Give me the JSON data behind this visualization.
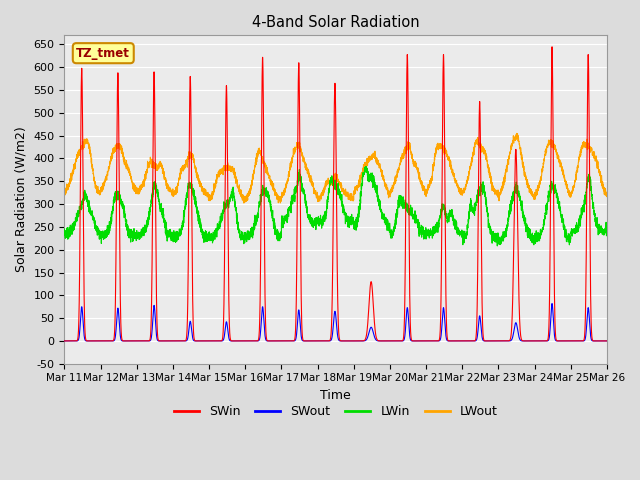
{
  "title": "4-Band Solar Radiation",
  "xlabel": "Time",
  "ylabel": "Solar Radiation (W/m2)",
  "ylim": [
    -50,
    670
  ],
  "xlim": [
    0,
    15
  ],
  "xtick_labels": [
    "Mar 11",
    "Mar 12",
    "Mar 13",
    "Mar 14",
    "Mar 15",
    "Mar 16",
    "Mar 17",
    "Mar 18",
    "Mar 19",
    "Mar 20",
    "Mar 21",
    "Mar 22",
    "Mar 23",
    "Mar 24",
    "Mar 25",
    "Mar 26"
  ],
  "ytick_values": [
    -50,
    0,
    50,
    100,
    150,
    200,
    250,
    300,
    350,
    400,
    450,
    500,
    550,
    600,
    650
  ],
  "legend_entries": [
    "SWin",
    "SWout",
    "LWin",
    "LWout"
  ],
  "annotation_text": "TZ_tmet",
  "annotation_bg": "#FFFF99",
  "annotation_border": "#CC8800",
  "fig_bg": "#DCDCDC",
  "plot_bg": "#EBEBEB",
  "grid_color": "white",
  "colors": {
    "SWin": "#FF0000",
    "SWout": "#0000FF",
    "LWin": "#00DD00",
    "LWout": "#FFA500"
  },
  "n_days": 15,
  "ppd": 288,
  "SWin_peaks": [
    598,
    588,
    590,
    580,
    560,
    622,
    610,
    565,
    130,
    628,
    628,
    525,
    420,
    645,
    628
  ],
  "SWout_peaks": [
    75,
    72,
    78,
    43,
    42,
    75,
    68,
    65,
    30,
    73,
    73,
    55,
    40,
    82,
    73
  ],
  "SWin_sigma": [
    0.035,
    0.035,
    0.035,
    0.035,
    0.035,
    0.035,
    0.035,
    0.04,
    0.06,
    0.035,
    0.035,
    0.035,
    0.05,
    0.035,
    0.035
  ],
  "SWin_center": [
    0.48,
    0.48,
    0.48,
    0.48,
    0.48,
    0.48,
    0.48,
    0.48,
    0.48,
    0.48,
    0.48,
    0.48,
    0.48,
    0.48,
    0.48
  ],
  "LWin_base": [
    235,
    230,
    230,
    225,
    225,
    230,
    260,
    260,
    245,
    235,
    235,
    225,
    220,
    225,
    240
  ],
  "LWin_peak_extra": [
    50,
    60,
    60,
    75,
    70,
    65,
    55,
    60,
    110,
    50,
    28,
    95,
    95,
    95,
    50
  ],
  "LWin_sigma": [
    0.15,
    0.15,
    0.15,
    0.15,
    0.15,
    0.15,
    0.15,
    0.15,
    0.2,
    0.15,
    0.15,
    0.15,
    0.15,
    0.15,
    0.15
  ],
  "LWout_base": [
    315,
    322,
    322,
    312,
    303,
    303,
    308,
    308,
    318,
    318,
    318,
    312,
    308,
    308,
    312
  ],
  "LWout_peak": [
    420,
    422,
    382,
    383,
    380,
    382,
    402,
    345,
    398,
    408,
    418,
    418,
    418,
    422,
    422
  ]
}
